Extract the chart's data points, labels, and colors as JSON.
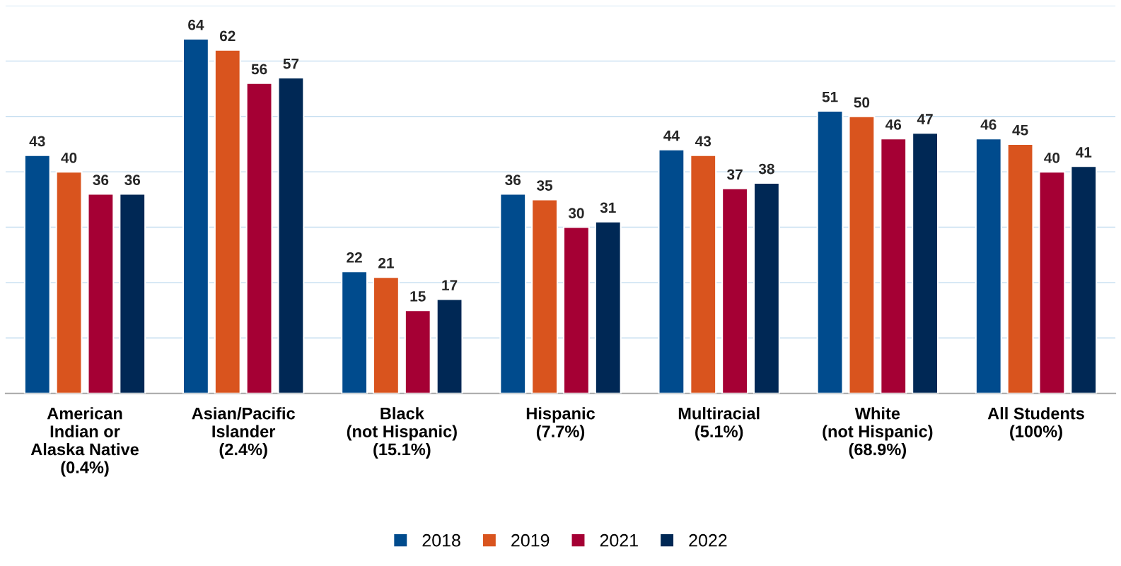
{
  "chart_data": {
    "type": "bar",
    "categories": [
      "American\nIndian or\nAlaska Native\n(0.4%)",
      "Asian/Pacific\nIslander\n(2.4%)",
      "Black\n(not Hispanic)\n(15.1%)",
      "Hispanic\n(7.7%)",
      "Multiracial\n(5.1%)",
      "White\n(not Hispanic)\n(68.9%)",
      "All Students\n(100%)"
    ],
    "series": [
      {
        "name": "2018",
        "color": "#004b8d",
        "values": [
          43,
          64,
          22,
          36,
          44,
          51,
          46
        ]
      },
      {
        "name": "2019",
        "color": "#d9541e",
        "values": [
          40,
          62,
          21,
          35,
          43,
          50,
          45
        ]
      },
      {
        "name": "2021",
        "color": "#a50034",
        "values": [
          36,
          56,
          15,
          30,
          37,
          46,
          40
        ]
      },
      {
        "name": "2022",
        "color": "#002855",
        "values": [
          36,
          57,
          17,
          31,
          38,
          47,
          41
        ]
      }
    ],
    "ylim": [
      0,
      70
    ],
    "yticks": [
      {
        "value": 0,
        "label": null
      },
      {
        "value": 10,
        "label": null
      },
      {
        "value": 20,
        "label": null
      },
      {
        "value": 30,
        "label": null
      },
      {
        "value": 40,
        "label": null
      },
      {
        "value": 50,
        "label": null
      },
      {
        "value": 60,
        "label": null
      },
      {
        "value": 70,
        "label": null
      }
    ],
    "tick_labels": "x",
    "grid": "y",
    "legend": "bottom",
    "data_labels": true
  }
}
